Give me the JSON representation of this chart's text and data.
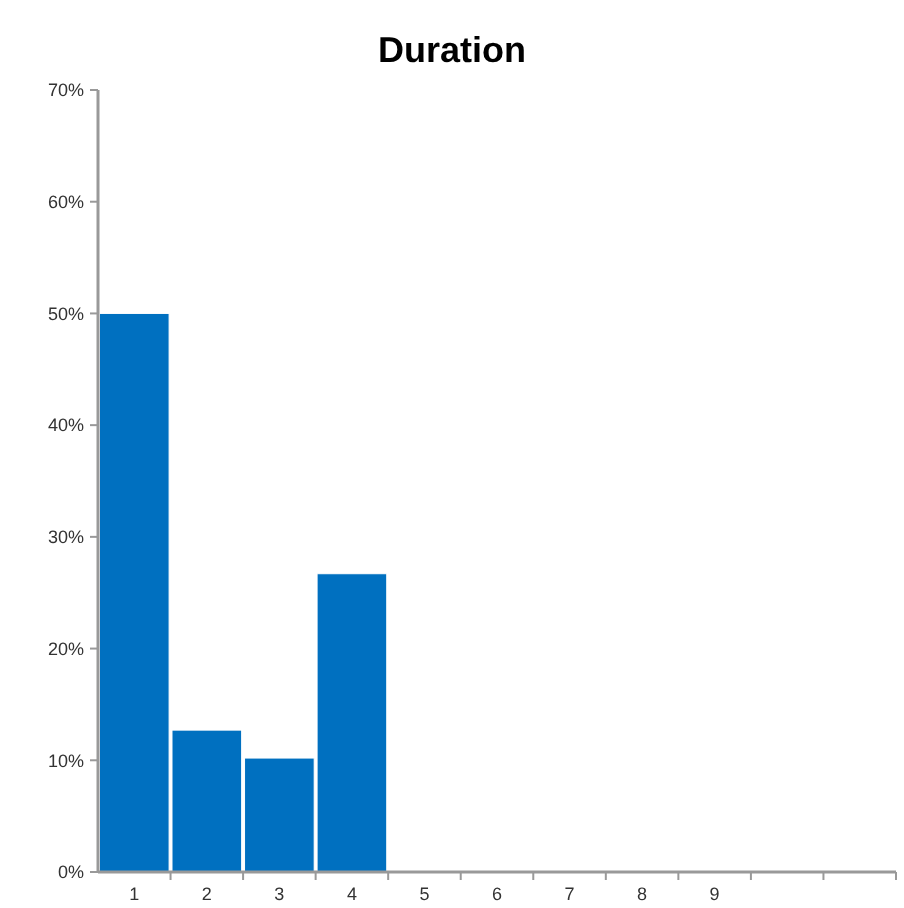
{
  "chart_data": {
    "type": "bar",
    "title": "Duration",
    "categories": [
      "1",
      "2",
      "3",
      "4",
      "5",
      "6",
      "7",
      "8",
      "9",
      null,
      null
    ],
    "values": [
      50,
      12.7,
      10.2,
      26.7,
      0,
      0,
      0,
      0,
      0,
      null,
      null
    ],
    "color": "#0070c0",
    "ylim": [
      0,
      70
    ],
    "yticks": [
      {
        "value": 0,
        "label": "0%"
      },
      {
        "value": 10,
        "label": "10%"
      },
      {
        "value": 20,
        "label": "20%"
      },
      {
        "value": 30,
        "label": "30%"
      },
      {
        "value": 40,
        "label": "40%"
      },
      {
        "value": 50,
        "label": "50%"
      },
      {
        "value": 60,
        "label": "60%"
      },
      {
        "value": 70,
        "label": "70%"
      }
    ],
    "grid": false
  }
}
